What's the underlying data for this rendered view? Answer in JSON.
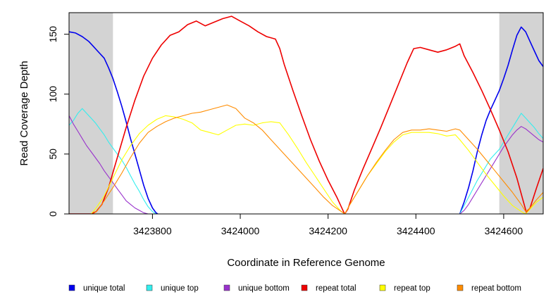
{
  "chart_data": {
    "type": "line",
    "title": "",
    "xlabel": "Coordinate in Reference Genome",
    "ylabel": "Read Coverage Depth",
    "xlim": [
      3423610,
      3424690
    ],
    "ylim": [
      0,
      168
    ],
    "x_ticks": [
      3423800,
      3424000,
      3424200,
      3424400,
      3424600
    ],
    "x_tick_labels": [
      "3423800",
      "3424000",
      "3424200",
      "3424400",
      "3424600"
    ],
    "y_ticks": [
      0,
      50,
      100,
      150
    ],
    "y_tick_labels": [
      "0",
      "50",
      "100",
      "150"
    ],
    "grid": false,
    "legend_position": "bottom",
    "shaded_regions": [
      {
        "x0": 3423610,
        "x1": 3423710,
        "color": "#d3d3d3"
      },
      {
        "x0": 3424590,
        "x1": 3424690,
        "color": "#d3d3d3"
      }
    ],
    "series": [
      {
        "name": "unique total",
        "color": "#0000ee",
        "points": [
          [
            3423610,
            152
          ],
          [
            3423625,
            151
          ],
          [
            3423640,
            148
          ],
          [
            3423655,
            144
          ],
          [
            3423665,
            140
          ],
          [
            3423675,
            136
          ],
          [
            3423690,
            130
          ],
          [
            3423700,
            122
          ],
          [
            3423710,
            113
          ],
          [
            3423720,
            102
          ],
          [
            3423730,
            90
          ],
          [
            3423740,
            77
          ],
          [
            3423750,
            63
          ],
          [
            3423760,
            50
          ],
          [
            3423770,
            37
          ],
          [
            3423780,
            24
          ],
          [
            3423790,
            13
          ],
          [
            3423800,
            5
          ],
          [
            3423808,
            1
          ],
          [
            3423812,
            0
          ]
        ],
        "points_b": [
          [
            3424500,
            0
          ],
          [
            3424510,
            10
          ],
          [
            3424520,
            22
          ],
          [
            3424530,
            36
          ],
          [
            3424540,
            52
          ],
          [
            3424550,
            66
          ],
          [
            3424560,
            78
          ],
          [
            3424570,
            87
          ],
          [
            3424580,
            95
          ],
          [
            3424590,
            103
          ],
          [
            3424600,
            113
          ],
          [
            3424610,
            124
          ],
          [
            3424620,
            137
          ],
          [
            3424630,
            149
          ],
          [
            3424640,
            156
          ],
          [
            3424650,
            152
          ],
          [
            3424660,
            144
          ],
          [
            3424670,
            136
          ],
          [
            3424680,
            128
          ],
          [
            3424690,
            123
          ]
        ]
      },
      {
        "name": "unique top",
        "color": "#33eeee",
        "points": [
          [
            3423610,
            74
          ],
          [
            3423620,
            78
          ],
          [
            3423630,
            84
          ],
          [
            3423640,
            88
          ],
          [
            3423650,
            84
          ],
          [
            3423660,
            80
          ],
          [
            3423670,
            76
          ],
          [
            3423680,
            71
          ],
          [
            3423690,
            66
          ],
          [
            3423700,
            60
          ],
          [
            3423710,
            55
          ],
          [
            3423720,
            50
          ],
          [
            3423730,
            45
          ],
          [
            3423740,
            39
          ],
          [
            3423750,
            32
          ],
          [
            3423760,
            25
          ],
          [
            3423770,
            19
          ],
          [
            3423780,
            12
          ],
          [
            3423790,
            6
          ],
          [
            3423800,
            2
          ],
          [
            3423808,
            0
          ]
        ],
        "points_b": [
          [
            3424500,
            0
          ],
          [
            3424510,
            7
          ],
          [
            3424520,
            14
          ],
          [
            3424530,
            21
          ],
          [
            3424540,
            28
          ],
          [
            3424550,
            34
          ],
          [
            3424560,
            40
          ],
          [
            3424570,
            46
          ],
          [
            3424580,
            50
          ],
          [
            3424590,
            54
          ],
          [
            3424600,
            60
          ],
          [
            3424610,
            66
          ],
          [
            3424620,
            72
          ],
          [
            3424630,
            78
          ],
          [
            3424640,
            84
          ],
          [
            3424650,
            80
          ],
          [
            3424660,
            76
          ],
          [
            3424670,
            72
          ],
          [
            3424680,
            67
          ],
          [
            3424690,
            63
          ]
        ]
      },
      {
        "name": "unique bottom",
        "color": "#9932cc",
        "points": [
          [
            3423610,
            82
          ],
          [
            3423620,
            75
          ],
          [
            3423630,
            69
          ],
          [
            3423640,
            63
          ],
          [
            3423650,
            57
          ],
          [
            3423660,
            52
          ],
          [
            3423670,
            47
          ],
          [
            3423680,
            42
          ],
          [
            3423690,
            36
          ],
          [
            3423700,
            31
          ],
          [
            3423710,
            26
          ],
          [
            3423720,
            21
          ],
          [
            3423730,
            16
          ],
          [
            3423740,
            11
          ],
          [
            3423750,
            8
          ],
          [
            3423760,
            5
          ],
          [
            3423770,
            3
          ],
          [
            3423780,
            1
          ],
          [
            3423790,
            0
          ]
        ],
        "points_b": [
          [
            3424500,
            0
          ],
          [
            3424510,
            3
          ],
          [
            3424520,
            8
          ],
          [
            3424530,
            14
          ],
          [
            3424540,
            20
          ],
          [
            3424550,
            26
          ],
          [
            3424560,
            32
          ],
          [
            3424570,
            38
          ],
          [
            3424580,
            44
          ],
          [
            3424590,
            50
          ],
          [
            3424600,
            56
          ],
          [
            3424610,
            61
          ],
          [
            3424620,
            66
          ],
          [
            3424630,
            70
          ],
          [
            3424640,
            73
          ],
          [
            3424650,
            71
          ],
          [
            3424660,
            68
          ],
          [
            3424670,
            65
          ],
          [
            3424680,
            62
          ],
          [
            3424690,
            60
          ]
        ]
      },
      {
        "name": "repeat total",
        "color": "#ee0000",
        "points": [
          [
            3423610,
            0
          ],
          [
            3423660,
            0
          ],
          [
            3423672,
            2
          ],
          [
            3423685,
            8
          ],
          [
            3423700,
            22
          ],
          [
            3423720,
            47
          ],
          [
            3423740,
            72
          ],
          [
            3423760,
            95
          ],
          [
            3423780,
            115
          ],
          [
            3423800,
            130
          ],
          [
            3423820,
            141
          ],
          [
            3423840,
            149
          ],
          [
            3423860,
            152
          ],
          [
            3423880,
            158
          ],
          [
            3423900,
            161
          ],
          [
            3423920,
            157
          ],
          [
            3423940,
            160
          ],
          [
            3423960,
            163
          ],
          [
            3423980,
            165
          ],
          [
            3424000,
            161
          ],
          [
            3424020,
            157
          ],
          [
            3424040,
            152
          ],
          [
            3424060,
            148
          ],
          [
            3424080,
            146
          ],
          [
            3424090,
            138
          ],
          [
            3424100,
            125
          ],
          [
            3424120,
            103
          ],
          [
            3424140,
            82
          ],
          [
            3424160,
            62
          ],
          [
            3424180,
            44
          ],
          [
            3424200,
            28
          ],
          [
            3424220,
            14
          ],
          [
            3424235,
            2
          ],
          [
            3424238,
            0
          ],
          [
            3424245,
            4
          ],
          [
            3424260,
            20
          ],
          [
            3424280,
            38
          ],
          [
            3424300,
            55
          ],
          [
            3424320,
            72
          ],
          [
            3424340,
            90
          ],
          [
            3424360,
            108
          ],
          [
            3424380,
            126
          ],
          [
            3424395,
            138
          ],
          [
            3424410,
            139
          ],
          [
            3424430,
            137
          ],
          [
            3424450,
            135
          ],
          [
            3424470,
            137
          ],
          [
            3424490,
            140
          ],
          [
            3424500,
            142
          ],
          [
            3424510,
            132
          ],
          [
            3424530,
            118
          ],
          [
            3424550,
            103
          ],
          [
            3424570,
            87
          ],
          [
            3424590,
            70
          ],
          [
            3424610,
            52
          ],
          [
            3424630,
            30
          ],
          [
            3424645,
            10
          ],
          [
            3424652,
            1
          ],
          [
            3424660,
            5
          ],
          [
            3424675,
            22
          ],
          [
            3424690,
            38
          ]
        ]
      },
      {
        "name": "repeat top",
        "color": "#ffff00",
        "points": [
          [
            3423610,
            0
          ],
          [
            3423660,
            0
          ],
          [
            3423670,
            4
          ],
          [
            3423690,
            15
          ],
          [
            3423710,
            30
          ],
          [
            3423730,
            45
          ],
          [
            3423750,
            57
          ],
          [
            3423770,
            67
          ],
          [
            3423790,
            74
          ],
          [
            3423810,
            79
          ],
          [
            3423830,
            82
          ],
          [
            3423850,
            81
          ],
          [
            3423870,
            79
          ],
          [
            3423890,
            76
          ],
          [
            3423910,
            70
          ],
          [
            3423930,
            68
          ],
          [
            3423950,
            66
          ],
          [
            3423970,
            70
          ],
          [
            3423990,
            74
          ],
          [
            3424010,
            75
          ],
          [
            3424030,
            74
          ],
          [
            3424050,
            76
          ],
          [
            3424070,
            77
          ],
          [
            3424090,
            76
          ],
          [
            3424110,
            66
          ],
          [
            3424130,
            55
          ],
          [
            3424150,
            43
          ],
          [
            3424170,
            32
          ],
          [
            3424190,
            21
          ],
          [
            3424210,
            10
          ],
          [
            3424230,
            2
          ],
          [
            3424238,
            0
          ],
          [
            3424250,
            8
          ],
          [
            3424270,
            20
          ],
          [
            3424290,
            32
          ],
          [
            3424310,
            42
          ],
          [
            3424330,
            52
          ],
          [
            3424350,
            60
          ],
          [
            3424370,
            66
          ],
          [
            3424390,
            68
          ],
          [
            3424410,
            68
          ],
          [
            3424430,
            68
          ],
          [
            3424450,
            67
          ],
          [
            3424470,
            65
          ],
          [
            3424490,
            66
          ],
          [
            3424500,
            62
          ],
          [
            3424520,
            53
          ],
          [
            3424540,
            43
          ],
          [
            3424560,
            33
          ],
          [
            3424580,
            24
          ],
          [
            3424600,
            15
          ],
          [
            3424620,
            7
          ],
          [
            3424640,
            2
          ],
          [
            3424650,
            0
          ],
          [
            3424660,
            4
          ],
          [
            3424675,
            10
          ],
          [
            3424690,
            14
          ]
        ]
      },
      {
        "name": "repeat bottom",
        "color": "#ff8c00",
        "points": [
          [
            3423610,
            0
          ],
          [
            3423665,
            0
          ],
          [
            3423675,
            3
          ],
          [
            3423690,
            11
          ],
          [
            3423710,
            22
          ],
          [
            3423730,
            34
          ],
          [
            3423750,
            47
          ],
          [
            3423770,
            59
          ],
          [
            3423790,
            68
          ],
          [
            3423810,
            73
          ],
          [
            3423830,
            77
          ],
          [
            3423850,
            80
          ],
          [
            3423870,
            82
          ],
          [
            3423890,
            84
          ],
          [
            3423910,
            85
          ],
          [
            3423930,
            87
          ],
          [
            3423950,
            89
          ],
          [
            3423970,
            91
          ],
          [
            3423990,
            88
          ],
          [
            3424010,
            80
          ],
          [
            3424030,
            76
          ],
          [
            3424050,
            70
          ],
          [
            3424070,
            62
          ],
          [
            3424090,
            54
          ],
          [
            3424110,
            46
          ],
          [
            3424130,
            38
          ],
          [
            3424150,
            30
          ],
          [
            3424170,
            22
          ],
          [
            3424190,
            14
          ],
          [
            3424210,
            7
          ],
          [
            3424230,
            2
          ],
          [
            3424238,
            0
          ],
          [
            3424250,
            8
          ],
          [
            3424270,
            20
          ],
          [
            3424290,
            32
          ],
          [
            3424310,
            43
          ],
          [
            3424330,
            53
          ],
          [
            3424350,
            62
          ],
          [
            3424370,
            68
          ],
          [
            3424390,
            70
          ],
          [
            3424410,
            70
          ],
          [
            3424430,
            71
          ],
          [
            3424450,
            70
          ],
          [
            3424470,
            69
          ],
          [
            3424490,
            71
          ],
          [
            3424500,
            70
          ],
          [
            3424520,
            62
          ],
          [
            3424540,
            54
          ],
          [
            3424560,
            45
          ],
          [
            3424580,
            36
          ],
          [
            3424600,
            27
          ],
          [
            3424620,
            18
          ],
          [
            3424640,
            8
          ],
          [
            3424650,
            2
          ],
          [
            3424660,
            5
          ],
          [
            3424675,
            12
          ],
          [
            3424690,
            18
          ]
        ]
      }
    ]
  }
}
